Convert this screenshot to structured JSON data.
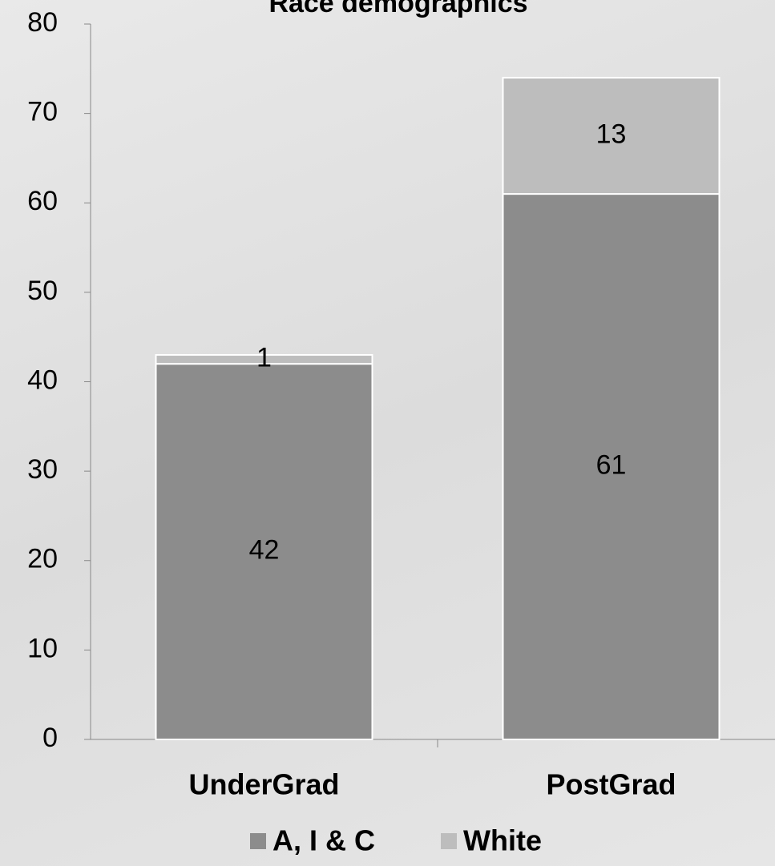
{
  "chart_data": {
    "type": "stacked_bar",
    "title": "Race demographics",
    "categories": [
      "UnderGrad",
      "PostGrad"
    ],
    "series": [
      {
        "name": "A, I & C",
        "color": "#8c8c8c",
        "values": [
          42,
          61
        ]
      },
      {
        "name": "White",
        "color": "#bdbdbd",
        "values": [
          1,
          13
        ]
      }
    ],
    "ylim": [
      0,
      80
    ],
    "yticks": [
      0,
      10,
      20,
      30,
      40,
      50,
      60,
      70,
      80
    ],
    "legend": "bottom",
    "data_labels": true
  }
}
